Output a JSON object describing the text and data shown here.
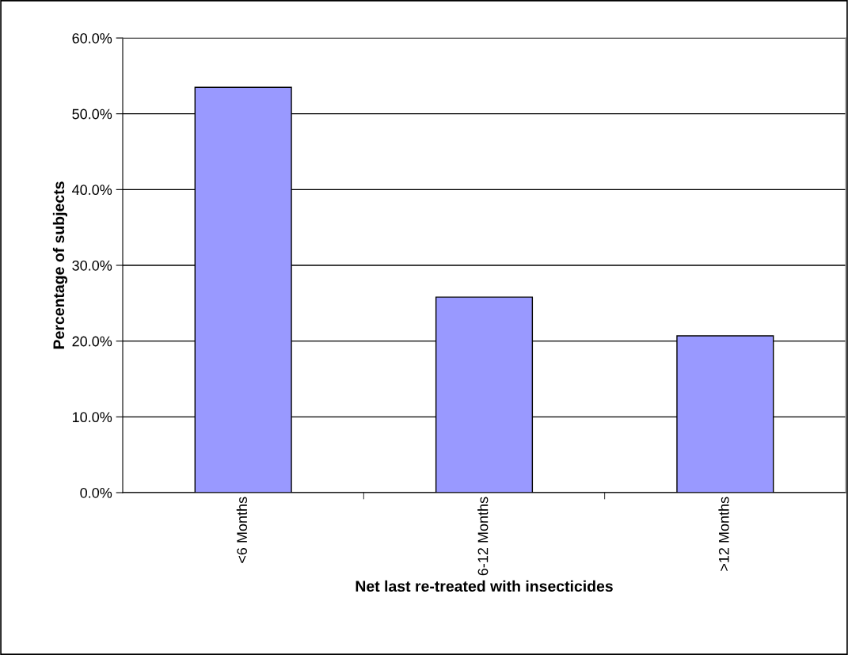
{
  "chart_data": {
    "type": "bar",
    "xlabel": "Net last re-treated with insecticides",
    "ylabel": "Percentage of subjects",
    "categories": [
      "<6 Months",
      "6-12 Months",
      ">12 Months"
    ],
    "values": [
      53.5,
      25.8,
      20.7
    ],
    "color": "#9999ff",
    "ylim": [
      0,
      60
    ],
    "yticks": [
      {
        "value": 0,
        "label": "0.0%"
      },
      {
        "value": 10,
        "label": "10.0%"
      },
      {
        "value": 20,
        "label": "20.0%"
      },
      {
        "value": 30,
        "label": "30.0%"
      },
      {
        "value": 40,
        "label": "40.0%"
      },
      {
        "value": 50,
        "label": "50.0%"
      },
      {
        "value": 60,
        "label": "60.0%"
      }
    ],
    "grid": "y",
    "legend": false
  }
}
